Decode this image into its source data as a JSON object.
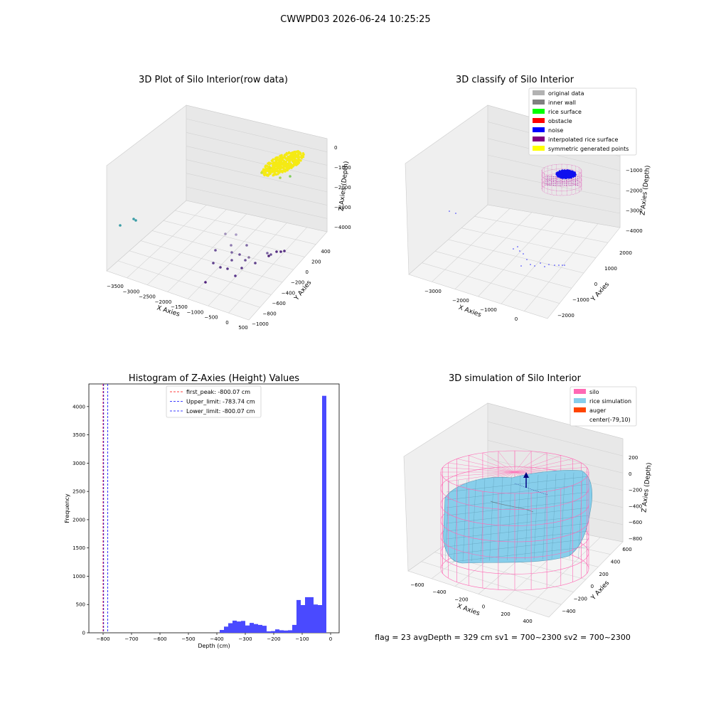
{
  "figure": {
    "suptitle": "CWWPD03 2026-06-24 10:25:25",
    "footer": "flag = 23   avgDepth = 329 cm  sv1 = 700~2300  sv2 = 700~2300"
  },
  "colors": {
    "original": "#b2b2b2",
    "inner_wall": "#808080",
    "rice_surface": "#00ff00",
    "obstacle": "#ff0000",
    "noise": "#0000ff",
    "interpolated": "#800080",
    "symmetric": "#ffff00",
    "silo": "#ff69b4",
    "rice_sim": "#87ceeb",
    "auger": "#ff4500",
    "hist": "#4a4aff"
  },
  "chart_data": [
    {
      "type": "scatter",
      "title": "3D Plot of Silo Interior(row data)",
      "xlabel": "X Axies",
      "ylabel": "Y Axies",
      "zlabel": "Z Axies (Depth)",
      "x_ticks": [
        "−3500",
        "−3000",
        "−2500",
        "−2000",
        "−1500",
        "−1000",
        "−500",
        "0",
        "500"
      ],
      "y_ticks": [
        "−1000",
        "−800",
        "−600",
        "−400",
        "−200",
        "0",
        "200",
        "400"
      ],
      "z_ticks": [
        "0",
        "−1000",
        "−2000",
        "−3000",
        "−4000"
      ],
      "grid": true
    },
    {
      "type": "scatter",
      "title": "3D classify of Silo Interior",
      "xlabel": "X Axies",
      "ylabel": "Y Axies",
      "zlabel": "Z Axies (Depth)",
      "x_ticks": [
        "−3000",
        "−2000",
        "−1000",
        "0"
      ],
      "y_ticks": [
        "−2000",
        "−1000",
        "0",
        "1000",
        "2000"
      ],
      "z_ticks": [
        "−1000",
        "−2000",
        "−3000",
        "−4000"
      ],
      "legend_position": "top-right",
      "legend": [
        {
          "label": "original data",
          "color": "#b2b2b2"
        },
        {
          "label": "inner wall",
          "color": "#808080"
        },
        {
          "label": "rice surface",
          "color": "#00ff00"
        },
        {
          "label": "obstacle",
          "color": "#ff0000"
        },
        {
          "label": "noise",
          "color": "#0000ff"
        },
        {
          "label": "interpolated rice surface",
          "color": "#800080"
        },
        {
          "label": "symmetric generated points",
          "color": "#ffff00"
        }
      ],
      "grid": true
    },
    {
      "type": "bar",
      "title": "Histogram of Z-Axies (Height) Values",
      "xlabel": "Depth (cm)",
      "ylabel": "Frequency",
      "xlim": [
        -850,
        30
      ],
      "ylim": [
        0,
        4400
      ],
      "x_ticks": [
        -800,
        -700,
        -600,
        -500,
        -400,
        -300,
        -200,
        -100,
        0
      ],
      "y_ticks": [
        0,
        500,
        1000,
        1500,
        2000,
        2500,
        3000,
        3500,
        4000
      ],
      "bin_width": 15,
      "bins_left": [
        -390,
        -375,
        -360,
        -345,
        -330,
        -315,
        -300,
        -285,
        -270,
        -255,
        -240,
        -225,
        -210,
        -195,
        -180,
        -165,
        -150,
        -135,
        -120,
        -105,
        -90,
        -75,
        -60,
        -45,
        -30,
        -15
      ],
      "counts": [
        50,
        110,
        170,
        215,
        200,
        210,
        130,
        175,
        155,
        140,
        125,
        25,
        30,
        60,
        45,
        40,
        45,
        140,
        580,
        490,
        630,
        630,
        500,
        490,
        4190,
        0
      ],
      "lines": [
        {
          "label": "first_peak: -800.07 cm",
          "x": -800.07,
          "color": "#ff0000"
        },
        {
          "label": "Upper_limit: -783.74 cm",
          "x": -783.74,
          "color": "#0000ff"
        },
        {
          "label": "Lower_limit: -800.07 cm",
          "x": -800.07,
          "color": "#0000ff"
        }
      ],
      "legend_position": "top-center"
    },
    {
      "type": "surface",
      "title": "3D simulation of Silo Interior",
      "xlabel": "X Axies",
      "ylabel": "Y Axies",
      "zlabel": "Z Axies (Depth)",
      "x_ticks": [
        "−600",
        "−400",
        "−200",
        "0",
        "200",
        "400"
      ],
      "y_ticks": [
        "−400",
        "−200",
        "0",
        "200",
        "400",
        "600"
      ],
      "z_ticks": [
        "200",
        "0",
        "−200",
        "−400",
        "−600",
        "−800"
      ],
      "legend_position": "top-right",
      "legend": [
        {
          "label": "silo",
          "color": "#ff69b4"
        },
        {
          "label": "rice simulation",
          "color": "#87ceeb"
        },
        {
          "label": "auger",
          "color": "#ff4500"
        },
        {
          "label": "center(-79,10)",
          "color": "#ffffff"
        }
      ],
      "grid": true
    }
  ]
}
